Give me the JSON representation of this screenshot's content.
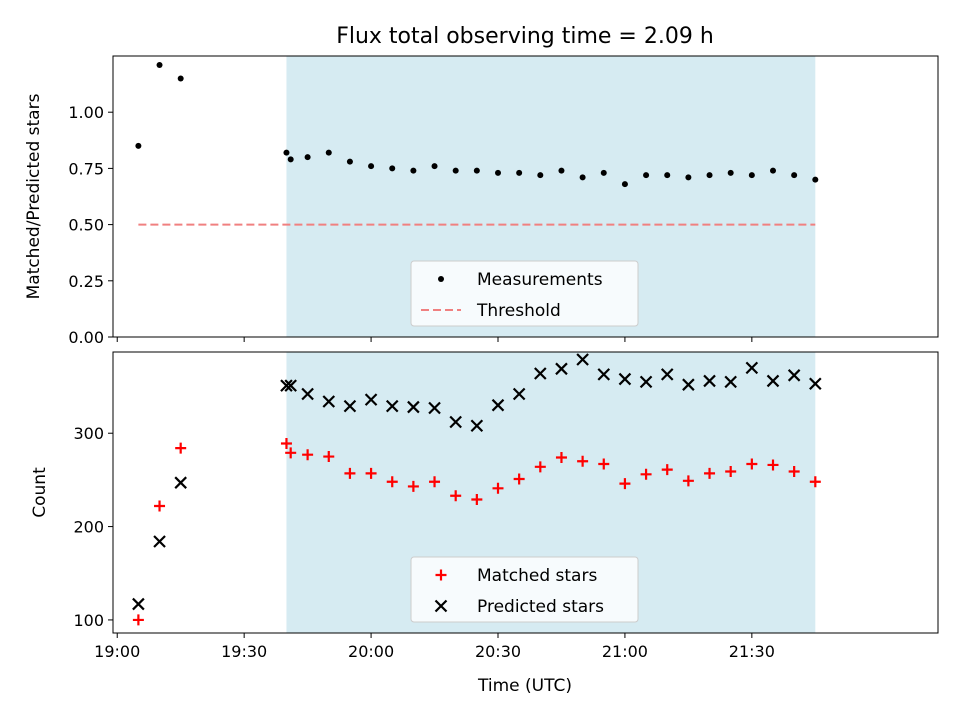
{
  "title": "Flux total observing time = 2.09 h",
  "chart_data": [
    {
      "type": "scatter",
      "ylabel": "Matched/Predicted stars",
      "ylim": [
        0,
        1.25
      ],
      "yticks": [
        0.0,
        0.25,
        0.5,
        0.75,
        1.0
      ],
      "ytick_labels": [
        "0.00",
        "0.25",
        "0.50",
        "0.75",
        "1.00"
      ],
      "xlim": [
        "18:59",
        "22:14"
      ],
      "shaded_span": [
        "19:40",
        "21:45"
      ],
      "shade_color": "#add8e6",
      "series": [
        {
          "name": "Measurements",
          "marker": "dot",
          "color": "#000000",
          "x": [
            "19:05",
            "19:10",
            "19:15",
            "19:40",
            "19:41",
            "19:45",
            "19:50",
            "19:55",
            "20:00",
            "20:05",
            "20:10",
            "20:15",
            "20:20",
            "20:25",
            "20:30",
            "20:35",
            "20:40",
            "20:45",
            "20:50",
            "20:55",
            "21:00",
            "21:05",
            "21:10",
            "21:15",
            "21:20",
            "21:25",
            "21:30",
            "21:35",
            "21:40",
            "21:45"
          ],
          "y": [
            0.85,
            1.21,
            1.15,
            0.82,
            0.79,
            0.8,
            0.82,
            0.78,
            0.76,
            0.75,
            0.74,
            0.76,
            0.74,
            0.74,
            0.73,
            0.73,
            0.72,
            0.74,
            0.71,
            0.73,
            0.68,
            0.72,
            0.72,
            0.71,
            0.72,
            0.73,
            0.72,
            0.74,
            0.72,
            0.7
          ]
        }
      ],
      "threshold": {
        "name": "Threshold",
        "value": 0.5,
        "x_range": [
          "19:05",
          "21:45"
        ],
        "color": "#f08080",
        "style": "dashed"
      },
      "legend": [
        "Measurements",
        "Threshold"
      ],
      "legend_position": "lower-center"
    },
    {
      "type": "scatter",
      "xlabel": "Time (UTC)",
      "ylabel": "Count",
      "ylim": [
        86,
        387
      ],
      "yticks": [
        100,
        200,
        300
      ],
      "ytick_labels": [
        "100",
        "200",
        "300"
      ],
      "xlim": [
        "18:59",
        "22:14"
      ],
      "xticks": [
        "19:00",
        "19:30",
        "20:00",
        "20:30",
        "21:00",
        "21:30"
      ],
      "shaded_span": [
        "19:40",
        "21:45"
      ],
      "shade_color": "#add8e6",
      "series": [
        {
          "name": "Matched stars",
          "marker": "plus",
          "color": "#ff0000",
          "x": [
            "19:05",
            "19:10",
            "19:15",
            "19:40",
            "19:41",
            "19:45",
            "19:50",
            "19:55",
            "20:00",
            "20:05",
            "20:10",
            "20:15",
            "20:20",
            "20:25",
            "20:30",
            "20:35",
            "20:40",
            "20:45",
            "20:50",
            "20:55",
            "21:00",
            "21:05",
            "21:10",
            "21:15",
            "21:20",
            "21:25",
            "21:30",
            "21:35",
            "21:40",
            "21:45"
          ],
          "y": [
            100,
            222,
            284,
            289,
            279,
            277,
            275,
            257,
            257,
            248,
            243,
            248,
            233,
            229,
            241,
            251,
            264,
            274,
            270,
            267,
            246,
            256,
            261,
            249,
            257,
            259,
            267,
            266,
            259,
            248
          ]
        },
        {
          "name": "Predicted stars",
          "marker": "x",
          "color": "#000000",
          "x": [
            "19:05",
            "19:10",
            "19:15",
            "19:40",
            "19:41",
            "19:45",
            "19:50",
            "19:55",
            "20:00",
            "20:05",
            "20:10",
            "20:15",
            "20:20",
            "20:25",
            "20:30",
            "20:35",
            "20:40",
            "20:45",
            "20:50",
            "20:55",
            "21:00",
            "21:05",
            "21:10",
            "21:15",
            "21:20",
            "21:25",
            "21:30",
            "21:35",
            "21:40",
            "21:45"
          ],
          "y": [
            117,
            184,
            247,
            351,
            351,
            342,
            334,
            329,
            336,
            329,
            328,
            327,
            312,
            308,
            330,
            342,
            364,
            369,
            379,
            363,
            358,
            355,
            363,
            352,
            356,
            355,
            370,
            356,
            362,
            353
          ]
        }
      ],
      "legend": [
        "Matched stars",
        "Predicted stars"
      ],
      "legend_position": "lower-center"
    }
  ]
}
